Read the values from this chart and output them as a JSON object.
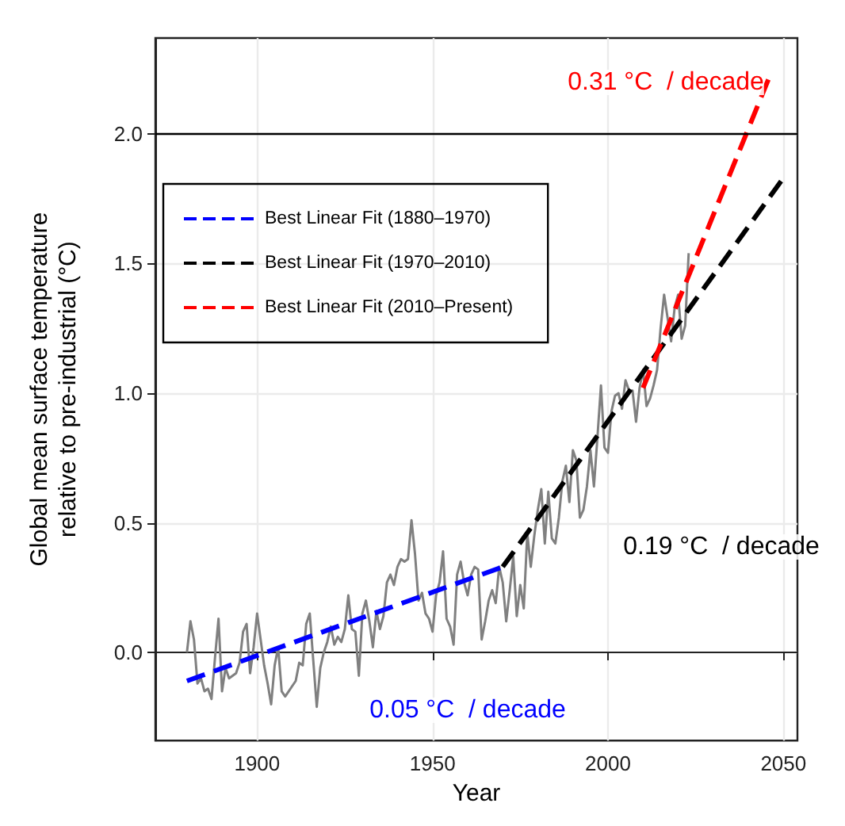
{
  "chart_data": {
    "type": "line",
    "xlabel": "Year",
    "ylabel": "Global mean surface temperature\nrelative to pre-industrial (°C)",
    "xlim": [
      1871,
      2054
    ],
    "xticks": [
      1900,
      1950,
      2000,
      2050
    ],
    "ylim": [
      -0.34,
      2.37
    ],
    "yticks": [
      {
        "value": 0,
        "label": "0.0"
      },
      {
        "value": 0.5,
        "label": "0.5"
      },
      {
        "value": 1,
        "label": "1.0"
      },
      {
        "value": 1.5,
        "label": "1.5"
      },
      {
        "value": 2,
        "label": "2.0"
      }
    ],
    "grid": true,
    "legend": "top left",
    "marker": "none",
    "series": [
      {
        "name": "Best Linear Fit (1880–1970)",
        "color": "#0000ff",
        "line_style": "dashed",
        "x": [
          1880,
          1970
        ],
        "values": [
          -0.11,
          0.33
        ]
      },
      {
        "name": "Best Linear Fit (1970–2010)",
        "color": "#000000",
        "line_style": "dashed",
        "x": [
          1970,
          2050
        ],
        "values": [
          0.33,
          1.83
        ]
      },
      {
        "name": "Best Linear Fit (2010–Present)",
        "color": "#ff0000",
        "line_style": "dashed",
        "x": [
          2010,
          2046
        ],
        "values": [
          1.02,
          2.22
        ]
      },
      {
        "color": "#808080",
        "line_style": "solid",
        "x": [
          1880,
          1881,
          1882,
          1883,
          1884,
          1885,
          1886,
          1887,
          1888,
          1889,
          1890,
          1891,
          1892,
          1893,
          1894,
          1895,
          1896,
          1897,
          1898,
          1899,
          1900,
          1901,
          1902,
          1903,
          1904,
          1905,
          1906,
          1907,
          1908,
          1909,
          1910,
          1911,
          1912,
          1913,
          1914,
          1915,
          1916,
          1917,
          1918,
          1919,
          1920,
          1921,
          1922,
          1923,
          1924,
          1925,
          1926,
          1927,
          1928,
          1929,
          1930,
          1931,
          1932,
          1933,
          1934,
          1935,
          1936,
          1937,
          1938,
          1939,
          1940,
          1941,
          1942,
          1943,
          1944,
          1945,
          1946,
          1947,
          1948,
          1949,
          1950,
          1951,
          1952,
          1953,
          1954,
          1955,
          1956,
          1957,
          1958,
          1959,
          1960,
          1961,
          1962,
          1963,
          1964,
          1965,
          1966,
          1967,
          1968,
          1969,
          1970,
          1971,
          1972,
          1973,
          1974,
          1975,
          1976,
          1977,
          1978,
          1979,
          1980,
          1981,
          1982,
          1983,
          1984,
          1985,
          1986,
          1987,
          1988,
          1989,
          1990,
          1991,
          1992,
          1993,
          1994,
          1995,
          1996,
          1997,
          1998,
          1999,
          2000,
          2001,
          2002,
          2003,
          2004,
          2005,
          2006,
          2007,
          2008,
          2009,
          2010,
          2011,
          2012,
          2013,
          2014,
          2015,
          2016,
          2017,
          2018,
          2019,
          2020,
          2021,
          2022,
          2023
        ],
        "values": [
          0.0,
          0.12,
          0.05,
          -0.12,
          -0.1,
          -0.15,
          -0.14,
          -0.18,
          -0.02,
          0.13,
          -0.15,
          -0.06,
          -0.1,
          -0.09,
          -0.08,
          -0.04,
          0.08,
          0.11,
          -0.08,
          0.02,
          0.15,
          0.05,
          -0.05,
          -0.12,
          -0.2,
          -0.05,
          0.02,
          -0.15,
          -0.17,
          -0.15,
          -0.13,
          -0.11,
          -0.04,
          -0.05,
          0.11,
          0.15,
          -0.03,
          -0.21,
          -0.06,
          0.0,
          0.04,
          0.1,
          0.03,
          0.06,
          0.04,
          0.09,
          0.22,
          0.09,
          0.08,
          -0.09,
          0.15,
          0.2,
          0.12,
          0.02,
          0.16,
          0.09,
          0.14,
          0.27,
          0.3,
          0.26,
          0.33,
          0.36,
          0.35,
          0.36,
          0.51,
          0.38,
          0.2,
          0.23,
          0.15,
          0.13,
          0.08,
          0.22,
          0.27,
          0.39,
          0.13,
          0.1,
          0.03,
          0.3,
          0.35,
          0.27,
          0.22,
          0.3,
          0.33,
          0.32,
          0.05,
          0.12,
          0.2,
          0.24,
          0.19,
          0.33,
          0.27,
          0.12,
          0.24,
          0.37,
          0.14,
          0.26,
          0.17,
          0.46,
          0.33,
          0.45,
          0.55,
          0.63,
          0.42,
          0.62,
          0.44,
          0.42,
          0.52,
          0.66,
          0.72,
          0.58,
          0.78,
          0.74,
          0.52,
          0.55,
          0.64,
          0.78,
          0.64,
          0.83,
          1.03,
          0.79,
          0.77,
          0.93,
          0.99,
          1.0,
          0.94,
          1.05,
          1.01,
          1.01,
          0.89,
          1.02,
          1.09,
          0.95,
          0.98,
          1.03,
          1.09,
          1.25,
          1.38,
          1.29,
          1.2,
          1.33,
          1.38,
          1.21,
          1.26,
          1.54
        ]
      }
    ],
    "ref_lines": [
      {
        "axis": "y",
        "value": 2.0,
        "color": "#000000",
        "line_style": "solid"
      }
    ],
    "annotations": [
      "0.05 °C  / decade",
      "0.19 °C  / decade",
      "0.31 °C  / decade"
    ]
  }
}
